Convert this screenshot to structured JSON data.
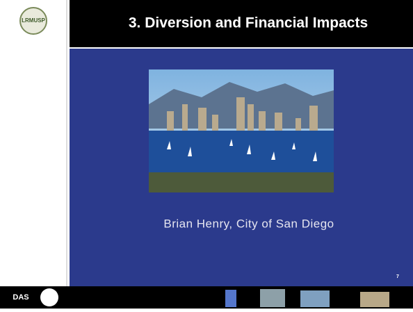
{
  "header": {
    "title": "3. Diversion and Financial  Impacts",
    "logo_text": "LRMUSP"
  },
  "body": {
    "presenter": "Brian Henry, City of San Diego"
  },
  "footer": {
    "logo_text": "DAS",
    "page_number": "7"
  }
}
